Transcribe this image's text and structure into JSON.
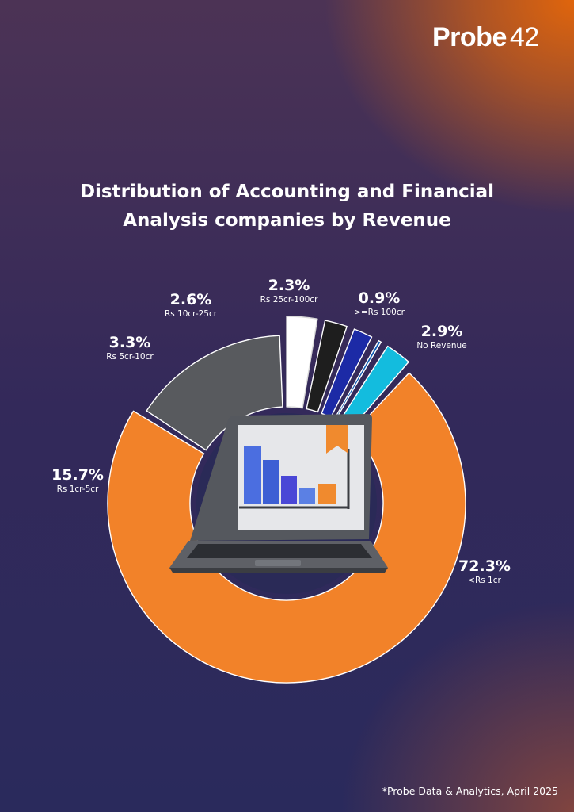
{
  "brand": {
    "logo_text": "Probe",
    "logo_number": "42"
  },
  "header": {
    "title_line1": "Distribution of Accounting and Financial",
    "title_line2": "Analysis companies by Revenue"
  },
  "chart_data": {
    "type": "pie",
    "title": "Distribution of Accounting and Financial Analysis companies by Revenue",
    "unit": "%",
    "slices": [
      {
        "label": "<Rs 1cr",
        "value": 72.3,
        "display": "72.3%",
        "color": "#f28229"
      },
      {
        "label": "Rs 1cr-5cr",
        "value": 15.7,
        "display": "15.7%",
        "color": "#585a5e"
      },
      {
        "label": "Rs 5cr-10cr",
        "value": 3.3,
        "display": "3.3%",
        "color": "#ffffff"
      },
      {
        "label": "Rs 10cr-25cr",
        "value": 2.6,
        "display": "2.6%",
        "color": "#1e1e1e"
      },
      {
        "label": "Rs 25cr-100cr",
        "value": 2.3,
        "display": "2.3%",
        "color": "#1c2aa6"
      },
      {
        "label": ">=Rs 100cr",
        "value": 0.9,
        "display": "0.9%",
        "color": "#0d5cb7"
      },
      {
        "label": "No Revenue",
        "value": 2.9,
        "display": "2.9%",
        "color": "#13bcde"
      }
    ]
  },
  "footer": {
    "source": "*Probe Data & Analytics, April 2025"
  }
}
